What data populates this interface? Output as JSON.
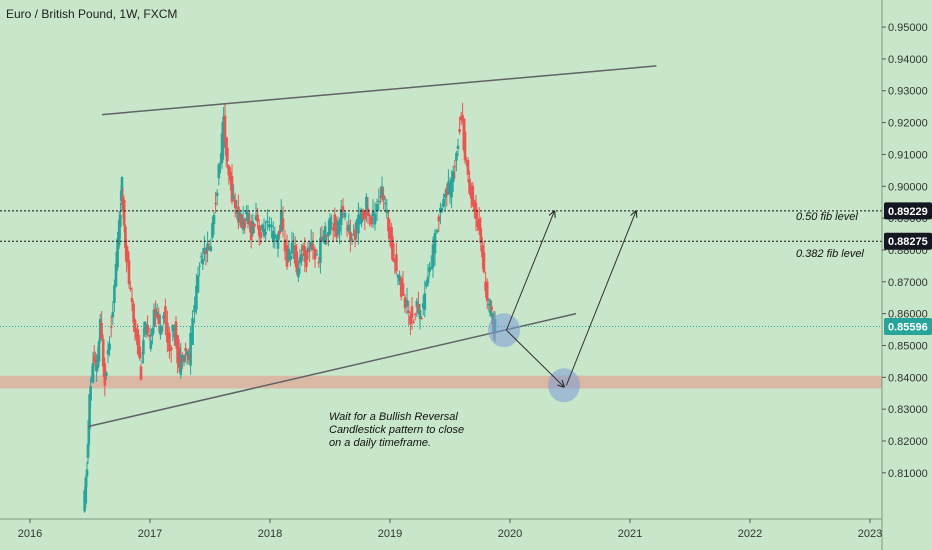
{
  "chart_data": {
    "type": "candlestick",
    "title": "Euro / British Pound, 1W, FXCM",
    "x_ticks": [
      "2016",
      "2017",
      "2018",
      "2019",
      "2020",
      "2021",
      "2022",
      "2023"
    ],
    "x_range": [
      2015.75,
      2023.1
    ],
    "y_range": [
      0.7955,
      0.9585
    ],
    "y_ticks": [
      "0.81000",
      "0.82000",
      "0.83000",
      "0.84000",
      "0.85000",
      "0.86000",
      "0.87000",
      "0.88000",
      "0.89000",
      "0.90000",
      "0.91000",
      "0.92000",
      "0.93000",
      "0.94000",
      "0.95000"
    ],
    "price_series": [
      [
        2016.45,
        0.797
      ],
      [
        2016.48,
        0.812
      ],
      [
        2016.5,
        0.833
      ],
      [
        2016.53,
        0.845
      ],
      [
        2016.56,
        0.842
      ],
      [
        2016.59,
        0.856
      ],
      [
        2016.63,
        0.84
      ],
      [
        2016.67,
        0.853
      ],
      [
        2016.71,
        0.868
      ],
      [
        2016.75,
        0.89
      ],
      [
        2016.77,
        0.9
      ],
      [
        2016.8,
        0.883
      ],
      [
        2016.83,
        0.87
      ],
      [
        2016.87,
        0.857
      ],
      [
        2016.9,
        0.852
      ],
      [
        2016.93,
        0.842
      ],
      [
        2016.96,
        0.856
      ],
      [
        2017.0,
        0.85
      ],
      [
        2017.04,
        0.862
      ],
      [
        2017.08,
        0.856
      ],
      [
        2017.12,
        0.86
      ],
      [
        2017.17,
        0.849
      ],
      [
        2017.21,
        0.856
      ],
      [
        2017.25,
        0.843
      ],
      [
        2017.29,
        0.85
      ],
      [
        2017.33,
        0.846
      ],
      [
        2017.38,
        0.864
      ],
      [
        2017.42,
        0.876
      ],
      [
        2017.46,
        0.882
      ],
      [
        2017.5,
        0.879
      ],
      [
        2017.54,
        0.892
      ],
      [
        2017.58,
        0.905
      ],
      [
        2017.62,
        0.92
      ],
      [
        2017.65,
        0.905
      ],
      [
        2017.69,
        0.898
      ],
      [
        2017.73,
        0.892
      ],
      [
        2017.77,
        0.888
      ],
      [
        2017.81,
        0.89
      ],
      [
        2017.85,
        0.886
      ],
      [
        2017.89,
        0.892
      ],
      [
        2017.93,
        0.884
      ],
      [
        2017.97,
        0.888
      ],
      [
        2018.02,
        0.885
      ],
      [
        2018.06,
        0.882
      ],
      [
        2018.1,
        0.89
      ],
      [
        2018.15,
        0.876
      ],
      [
        2018.19,
        0.882
      ],
      [
        2018.23,
        0.874
      ],
      [
        2018.27,
        0.88
      ],
      [
        2018.31,
        0.877
      ],
      [
        2018.35,
        0.883
      ],
      [
        2018.4,
        0.876
      ],
      [
        2018.44,
        0.884
      ],
      [
        2018.48,
        0.886
      ],
      [
        2018.52,
        0.89
      ],
      [
        2018.56,
        0.886
      ],
      [
        2018.6,
        0.892
      ],
      [
        2018.65,
        0.888
      ],
      [
        2018.69,
        0.882
      ],
      [
        2018.73,
        0.888
      ],
      [
        2018.77,
        0.89
      ],
      [
        2018.81,
        0.894
      ],
      [
        2018.85,
        0.888
      ],
      [
        2018.9,
        0.896
      ],
      [
        2018.94,
        0.898
      ],
      [
        2018.98,
        0.89
      ],
      [
        2019.02,
        0.882
      ],
      [
        2019.06,
        0.874
      ],
      [
        2019.1,
        0.868
      ],
      [
        2019.15,
        0.862
      ],
      [
        2019.19,
        0.858
      ],
      [
        2019.23,
        0.862
      ],
      [
        2019.27,
        0.86
      ],
      [
        2019.31,
        0.87
      ],
      [
        2019.35,
        0.876
      ],
      [
        2019.4,
        0.888
      ],
      [
        2019.44,
        0.896
      ],
      [
        2019.48,
        0.898
      ],
      [
        2019.52,
        0.9
      ],
      [
        2019.56,
        0.912
      ],
      [
        2019.6,
        0.923
      ],
      [
        2019.63,
        0.91
      ],
      [
        2019.67,
        0.9
      ],
      [
        2019.71,
        0.892
      ],
      [
        2019.75,
        0.888
      ],
      [
        2019.79,
        0.872
      ],
      [
        2019.83,
        0.862
      ],
      [
        2019.85,
        0.859
      ],
      [
        2019.88,
        0.856
      ]
    ],
    "annotations": {
      "fib_50_label": "0.50 fib level",
      "fib_382_label": "0.382 fib level",
      "fib_50_price": "0.89229",
      "fib_382_price": "0.88275",
      "current_price": "0.85596",
      "note_lines": [
        "Wait for a Bullish Reversal",
        "Candlestick pattern to close",
        "on a daily timeframe."
      ]
    },
    "levels": {
      "fib_50": 0.89229,
      "fib_382": 0.88275,
      "current": 0.85596,
      "support_zone": [
        0.8365,
        0.8405
      ]
    },
    "trendlines": {
      "upper": [
        [
          2016.6,
          0.9225
        ],
        [
          2021.22,
          0.9378
        ]
      ],
      "lower": [
        [
          2016.48,
          0.8245
        ],
        [
          2020.55,
          0.86
        ]
      ]
    },
    "scenario_arrows": [
      {
        "from": [
          2019.97,
          0.8548
        ],
        "to": [
          2020.37,
          0.8922
        ]
      },
      {
        "from": [
          2019.97,
          0.8548
        ],
        "to": [
          2020.45,
          0.837
        ]
      },
      {
        "from": [
          2020.47,
          0.8375
        ],
        "to": [
          2021.05,
          0.8922
        ]
      }
    ],
    "highlight_circles": [
      [
        2019.95,
        0.8548
      ],
      [
        2020.45,
        0.8375
      ]
    ],
    "colors": {
      "background": "#c8e6c9",
      "up_candle": "#26a69a",
      "down_candle": "#ef5350",
      "trendline": "#5f6368",
      "support_zone": "#d9b9a3",
      "current_price": "#26a69a",
      "fib_badge": "#131722"
    },
    "grid": false
  }
}
